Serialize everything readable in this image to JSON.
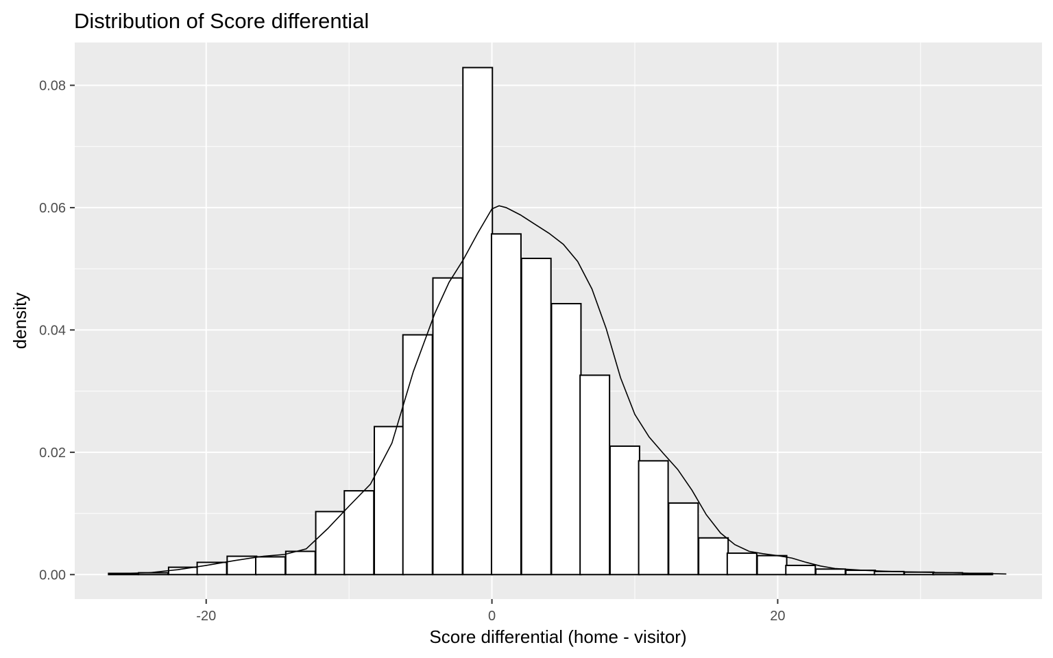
{
  "chart_data": {
    "type": "bar",
    "title": "Distribution of Score differential",
    "xlabel": "Score differential  (home - visitor)",
    "ylabel": "density",
    "xlim": [
      -29.2,
      38.5
    ],
    "ylim": [
      -0.004,
      0.087
    ],
    "x_ticks": [
      -20,
      0,
      20
    ],
    "x_tick_labels": [
      "-20",
      "0",
      "20"
    ],
    "y_ticks": [
      0.0,
      0.02,
      0.04,
      0.06,
      0.08
    ],
    "y_tick_labels": [
      "0.00",
      "0.02",
      "0.04",
      "0.06",
      "0.08"
    ],
    "grid": true,
    "background": "#ebebeb",
    "bin_width": 2.063,
    "bars": [
      {
        "x": -25.8,
        "value": 0.0002
      },
      {
        "x": -23.7,
        "value": 0.0003
      },
      {
        "x": -21.6,
        "value": 0.0012
      },
      {
        "x": -19.6,
        "value": 0.002
      },
      {
        "x": -17.5,
        "value": 0.003
      },
      {
        "x": -15.5,
        "value": 0.0029
      },
      {
        "x": -13.4,
        "value": 0.0038
      },
      {
        "x": -11.3,
        "value": 0.0103
      },
      {
        "x": -9.3,
        "value": 0.0137
      },
      {
        "x": -7.2,
        "value": 0.0242
      },
      {
        "x": -5.2,
        "value": 0.0392
      },
      {
        "x": -3.1,
        "value": 0.0485
      },
      {
        "x": -1.0,
        "value": 0.0829
      },
      {
        "x": 1.0,
        "value": 0.0557
      },
      {
        "x": 3.1,
        "value": 0.0517
      },
      {
        "x": 5.2,
        "value": 0.0443
      },
      {
        "x": 7.2,
        "value": 0.0326
      },
      {
        "x": 9.3,
        "value": 0.021
      },
      {
        "x": 11.3,
        "value": 0.0186
      },
      {
        "x": 13.4,
        "value": 0.0117
      },
      {
        "x": 15.5,
        "value": 0.006
      },
      {
        "x": 17.5,
        "value": 0.0035
      },
      {
        "x": 19.6,
        "value": 0.0031
      },
      {
        "x": 21.6,
        "value": 0.0015
      },
      {
        "x": 23.7,
        "value": 0.0009
      },
      {
        "x": 25.8,
        "value": 0.0007
      },
      {
        "x": 27.8,
        "value": 0.0005
      },
      {
        "x": 29.9,
        "value": 0.0004
      },
      {
        "x": 31.9,
        "value": 0.0003
      },
      {
        "x": 34.0,
        "value": 0.0002
      }
    ],
    "density_line": {
      "x": [
        -25.8,
        -24,
        -22,
        -20,
        -18,
        -16,
        -14.5,
        -13,
        -11.5,
        -10,
        -8.5,
        -7,
        -5.5,
        -4,
        -3,
        -2,
        -1,
        0,
        0.5,
        1,
        2,
        3,
        4,
        5,
        6,
        7,
        8,
        9,
        10,
        11,
        12,
        13,
        14,
        15,
        16,
        17,
        18,
        19,
        20,
        21,
        22,
        23,
        24,
        26,
        28,
        30,
        32,
        34,
        36
      ],
      "y": [
        0.0002,
        0.0003,
        0.0008,
        0.0015,
        0.0023,
        0.003,
        0.0033,
        0.0042,
        0.0075,
        0.0112,
        0.0148,
        0.0215,
        0.0332,
        0.0427,
        0.0478,
        0.0515,
        0.0558,
        0.0598,
        0.0603,
        0.06,
        0.0588,
        0.0573,
        0.0558,
        0.054,
        0.0512,
        0.0467,
        0.0402,
        0.0322,
        0.0262,
        0.0225,
        0.0198,
        0.0172,
        0.0138,
        0.0098,
        0.0068,
        0.0049,
        0.0038,
        0.0034,
        0.0031,
        0.0027,
        0.002,
        0.0014,
        0.001,
        0.0007,
        0.0005,
        0.0004,
        0.0003,
        0.0002,
        0.0001
      ]
    }
  }
}
